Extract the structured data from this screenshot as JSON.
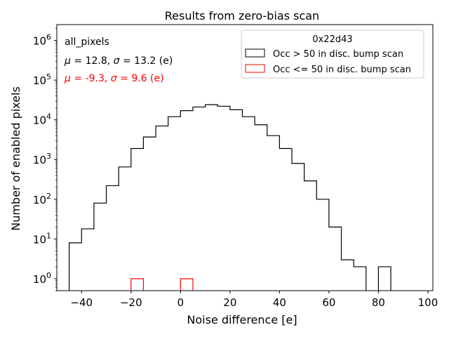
{
  "chart_data": {
    "type": "histogram",
    "title": "Results from zero-bias scan",
    "xlabel": "Noise difference [e]",
    "ylabel": "Number of enabled pixels",
    "xlim": [
      -50,
      102
    ],
    "ylim": [
      0.5,
      2500000
    ],
    "yscale": "log",
    "xticks": [
      -40,
      -20,
      0,
      20,
      40,
      60,
      80,
      100
    ],
    "xtick_labels": [
      "−40",
      "−20",
      "0",
      "20",
      "40",
      "60",
      "80",
      "100"
    ],
    "yticks": [
      {
        "value": 1,
        "base": "10",
        "exp": "0"
      },
      {
        "value": 10,
        "base": "10",
        "exp": "1"
      },
      {
        "value": 100,
        "base": "10",
        "exp": "2"
      },
      {
        "value": 1000,
        "base": "10",
        "exp": "3"
      },
      {
        "value": 10000,
        "base": "10",
        "exp": "4"
      },
      {
        "value": 100000,
        "base": "10",
        "exp": "5"
      },
      {
        "value": 1000000,
        "base": "10",
        "exp": "6"
      }
    ],
    "bin_edges": [
      -45,
      -40,
      -35,
      -30,
      -25,
      -20,
      -15,
      -10,
      -5,
      0,
      5,
      10,
      15,
      20,
      25,
      30,
      35,
      40,
      45,
      50,
      55,
      60,
      65,
      70,
      75,
      80,
      85,
      90,
      95
    ],
    "series": [
      {
        "name": "Occ > 50 in disc. bump scan",
        "color": "#000000",
        "counts": [
          8,
          18,
          80,
          220,
          650,
          1900,
          3700,
          7000,
          12000,
          17000,
          21000,
          24000,
          22000,
          18000,
          12000,
          7500,
          4000,
          1900,
          800,
          290,
          100,
          20,
          3,
          2,
          0,
          2,
          0,
          0
        ]
      },
      {
        "name": "Occ <= 50 in disc. bump scan",
        "color": "#ff0000",
        "counts": [
          0,
          0,
          0,
          0,
          0,
          1,
          0,
          0,
          0,
          1,
          0,
          0,
          0,
          0,
          0,
          0,
          0,
          0,
          0,
          0,
          0,
          0,
          0,
          0,
          0,
          0,
          0,
          0
        ]
      }
    ],
    "legend": {
      "title": "0x22d43",
      "placement": "top-right",
      "entries": [
        "Occ > 50 in disc. bump scan",
        "Occ <= 50 in disc. bump scan"
      ]
    },
    "annotations": {
      "label": "all_pixels",
      "stats_black": {
        "mu": "12.8",
        "sigma": "13.2",
        "unit": "(e)",
        "color": "#000000"
      },
      "stats_red": {
        "mu": "-9.3",
        "sigma": "9.6",
        "unit": "(e)",
        "color": "#ff0000"
      }
    }
  }
}
